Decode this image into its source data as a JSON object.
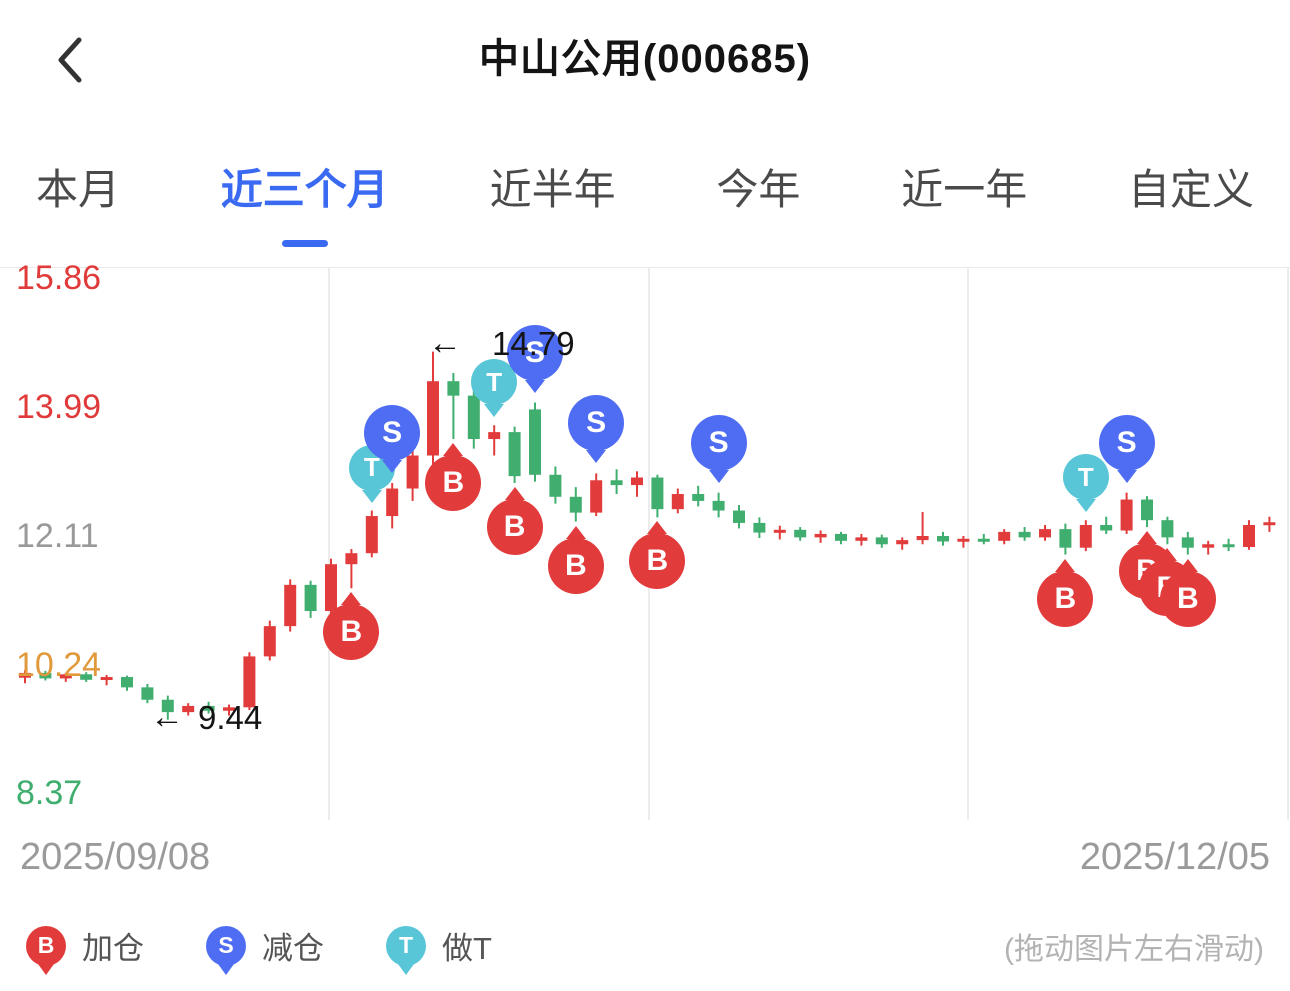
{
  "header": {
    "title": "中山公用(000685)"
  },
  "tabs": {
    "items": [
      {
        "key": "this-month",
        "label": "本月",
        "active": false
      },
      {
        "key": "recent-3-months",
        "label": "近三个月",
        "active": true
      },
      {
        "key": "recent-half-year",
        "label": "近半年",
        "active": false
      },
      {
        "key": "this-year",
        "label": "今年",
        "active": false
      },
      {
        "key": "recent-1-year",
        "label": "近一年",
        "active": false
      },
      {
        "key": "custom",
        "label": "自定义",
        "active": false
      }
    ]
  },
  "chart_data": {
    "type": "candlestick",
    "x_axis": {
      "start": "2025/09/08",
      "end": "2025/12/05"
    },
    "ylim": [
      8.37,
      15.86
    ],
    "y_axis": [
      {
        "value": "15.86",
        "price": 15.86,
        "color": "#e03a3a"
      },
      {
        "value": "13.99",
        "price": 13.99,
        "color": "#e03a3a"
      },
      {
        "value": "12.11",
        "price": 12.11,
        "color": "#999999"
      },
      {
        "value": "10.24",
        "price": 10.24,
        "color": "#e09a3c"
      },
      {
        "value": "8.37",
        "price": 8.37,
        "color": "#3fae6e"
      }
    ],
    "candles": [
      [
        10.05,
        10.16,
        9.97,
        10.12
      ],
      [
        10.12,
        10.15,
        10.01,
        10.04
      ],
      [
        10.04,
        10.12,
        9.99,
        10.1
      ],
      [
        10.1,
        10.13,
        9.99,
        10.02
      ],
      [
        10.02,
        10.09,
        9.94,
        10.06
      ],
      [
        10.06,
        10.08,
        9.86,
        9.91
      ],
      [
        9.91,
        9.96,
        9.68,
        9.73
      ],
      [
        9.73,
        9.79,
        9.44,
        9.55
      ],
      [
        9.55,
        9.68,
        9.5,
        9.64
      ],
      [
        9.64,
        9.7,
        9.53,
        9.57
      ],
      [
        9.57,
        9.66,
        9.5,
        9.62
      ],
      [
        9.62,
        10.42,
        9.58,
        10.36
      ],
      [
        10.36,
        10.88,
        10.3,
        10.8
      ],
      [
        10.8,
        11.48,
        10.72,
        11.4
      ],
      [
        11.4,
        11.46,
        10.92,
        11.02
      ],
      [
        11.02,
        11.78,
        10.98,
        11.7
      ],
      [
        11.7,
        11.92,
        11.35,
        11.86
      ],
      [
        11.86,
        12.48,
        11.8,
        12.4
      ],
      [
        12.4,
        12.88,
        12.22,
        12.8
      ],
      [
        12.8,
        13.38,
        12.62,
        13.28
      ],
      [
        13.28,
        14.79,
        13.12,
        14.36
      ],
      [
        14.36,
        14.48,
        13.52,
        14.15
      ],
      [
        14.15,
        14.22,
        13.38,
        13.52
      ],
      [
        13.52,
        13.72,
        13.28,
        13.62
      ],
      [
        13.62,
        13.7,
        12.88,
        12.98
      ],
      [
        13.95,
        14.05,
        12.9,
        13.0
      ],
      [
        13.0,
        13.12,
        12.58,
        12.68
      ],
      [
        12.68,
        12.82,
        12.32,
        12.45
      ],
      [
        12.45,
        13.02,
        12.4,
        12.92
      ],
      [
        12.92,
        13.08,
        12.72,
        12.85
      ],
      [
        12.85,
        13.05,
        12.68,
        12.96
      ],
      [
        12.96,
        13.0,
        12.38,
        12.5
      ],
      [
        12.5,
        12.8,
        12.44,
        12.72
      ],
      [
        12.72,
        12.84,
        12.54,
        12.62
      ],
      [
        12.62,
        12.74,
        12.38,
        12.48
      ],
      [
        12.48,
        12.56,
        12.22,
        12.3
      ],
      [
        12.3,
        12.38,
        12.08,
        12.16
      ],
      [
        12.16,
        12.26,
        12.06,
        12.2
      ],
      [
        12.2,
        12.24,
        12.04,
        12.09
      ],
      [
        12.09,
        12.19,
        12.01,
        12.14
      ],
      [
        12.14,
        12.17,
        11.99,
        12.04
      ],
      [
        12.04,
        12.14,
        11.97,
        12.09
      ],
      [
        12.09,
        12.13,
        11.94,
        11.99
      ],
      [
        11.99,
        12.09,
        11.91,
        12.05
      ],
      [
        12.05,
        12.46,
        11.99,
        12.11
      ],
      [
        12.11,
        12.17,
        11.97,
        12.03
      ],
      [
        12.03,
        12.11,
        11.94,
        12.07
      ],
      [
        12.07,
        12.14,
        11.99,
        12.04
      ],
      [
        12.04,
        12.21,
        11.99,
        12.17
      ],
      [
        12.17,
        12.24,
        12.04,
        12.09
      ],
      [
        12.09,
        12.27,
        12.04,
        12.21
      ],
      [
        12.21,
        12.29,
        11.84,
        11.94
      ],
      [
        11.94,
        12.34,
        11.89,
        12.27
      ],
      [
        12.27,
        12.39,
        12.14,
        12.19
      ],
      [
        12.19,
        12.74,
        12.14,
        12.64
      ],
      [
        12.64,
        12.69,
        12.24,
        12.34
      ],
      [
        12.34,
        12.39,
        11.99,
        12.09
      ],
      [
        12.09,
        12.17,
        11.84,
        11.94
      ],
      [
        11.94,
        12.04,
        11.84,
        11.99
      ],
      [
        11.99,
        12.07,
        11.89,
        11.95
      ],
      [
        11.95,
        12.34,
        11.91,
        12.27
      ],
      [
        12.27,
        12.39,
        12.17,
        12.31
      ]
    ],
    "markers": [
      {
        "index": 16,
        "type": "B"
      },
      {
        "index": 17,
        "type": "T"
      },
      {
        "index": 18,
        "type": "S"
      },
      {
        "index": 21,
        "type": "B"
      },
      {
        "index": 23,
        "type": "T"
      },
      {
        "index": 24,
        "type": "B"
      },
      {
        "index": 25,
        "type": "S"
      },
      {
        "index": 27,
        "type": "B"
      },
      {
        "index": 28,
        "type": "S"
      },
      {
        "index": 31,
        "type": "B"
      },
      {
        "index": 34,
        "type": "S"
      },
      {
        "index": 51,
        "type": "B"
      },
      {
        "index": 52,
        "type": "T"
      },
      {
        "index": 54,
        "type": "S"
      },
      {
        "index": 55,
        "type": "B"
      },
      {
        "index": 56,
        "type": "B"
      },
      {
        "index": 57,
        "type": "B"
      }
    ],
    "annotations": [
      {
        "id": "high",
        "arrow": "←",
        "value": "14.79",
        "price": 14.79,
        "candle_index": 20
      },
      {
        "id": "low",
        "arrow": "←",
        "value": "9.44",
        "price": 9.44,
        "candle_index": 7
      }
    ],
    "colors": {
      "up": "#e23b3b",
      "down": "#3fae6e",
      "buy": "#e23b3b",
      "sell": "#4f6df2",
      "t_trade": "#58c6d6",
      "grid": "#ececec"
    }
  },
  "legend": {
    "items": [
      {
        "type": "B",
        "label": "加仓",
        "color": "#e23b3b"
      },
      {
        "type": "S",
        "label": "减仓",
        "color": "#4f6df2"
      },
      {
        "type": "T",
        "label": "做T",
        "color": "#58c6d6"
      }
    ],
    "drag_hint": "(拖动图片左右滑动)"
  },
  "theme": {
    "accent": "#3a6af2"
  }
}
